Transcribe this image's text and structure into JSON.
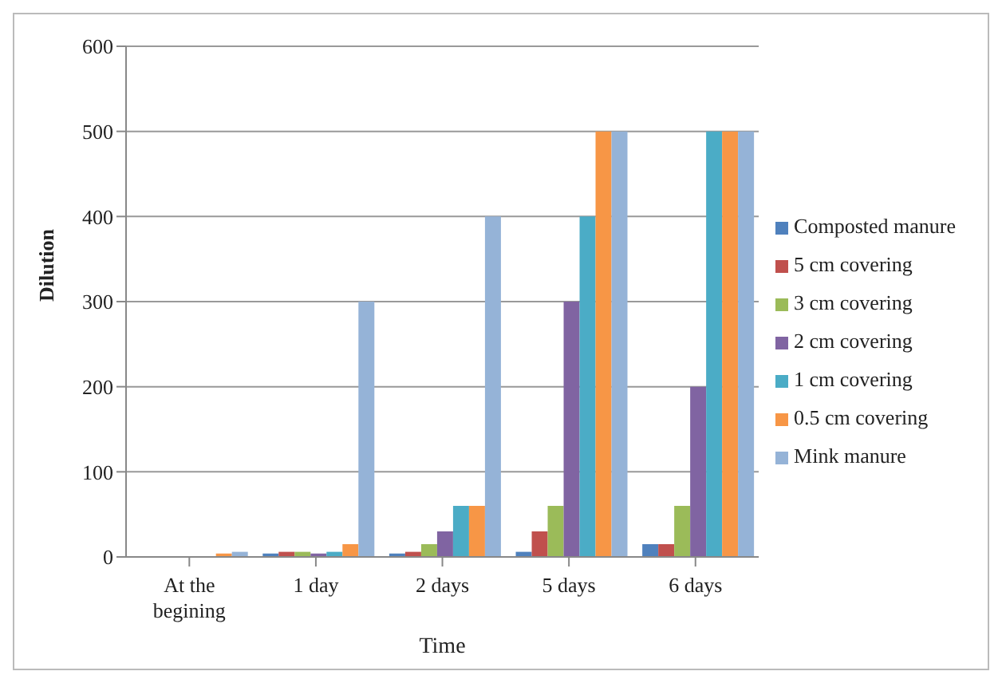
{
  "chart_data": {
    "type": "bar",
    "xlabel": "Time",
    "ylabel": "Dilution",
    "categories": [
      "At the begining",
      "1 day",
      "2 days",
      "5 days",
      "6 days"
    ],
    "series": [
      {
        "name": "Composted manure",
        "color": "#4f81bd",
        "values": [
          0,
          4,
          4,
          6,
          15
        ]
      },
      {
        "name": "5 cm covering",
        "color": "#c0504d",
        "values": [
          0,
          6,
          6,
          30,
          15
        ]
      },
      {
        "name": "3 cm covering",
        "color": "#9bbb59",
        "values": [
          0,
          6,
          15,
          60,
          60
        ]
      },
      {
        "name": "2 cm covering",
        "color": "#8064a2",
        "values": [
          0,
          4,
          30,
          300,
          200
        ]
      },
      {
        "name": "1 cm covering",
        "color": "#4bacc6",
        "values": [
          0,
          6,
          60,
          400,
          500
        ]
      },
      {
        "name": "0.5 cm covering",
        "color": "#f79646",
        "values": [
          4,
          15,
          60,
          500,
          500
        ]
      },
      {
        "name": "Mink manure",
        "color": "#95b3d7",
        "values": [
          6,
          300,
          400,
          500,
          500
        ]
      }
    ],
    "ylim": [
      0,
      600
    ],
    "yticks": [
      0,
      100,
      200,
      300,
      400,
      500,
      600
    ],
    "grid": "y",
    "legend": "right"
  }
}
